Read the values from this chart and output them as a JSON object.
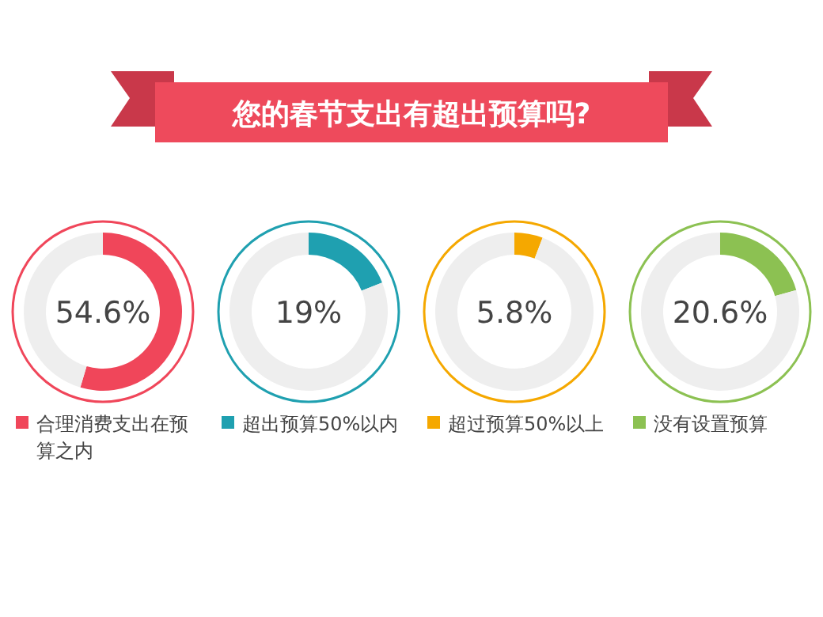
{
  "chart_data": [
    {
      "type": "donut",
      "title": "您的春节支出有超出预算吗?",
      "categories": [
        "合理消费支出在预算之内",
        null
      ],
      "values": [
        54.6,
        45.4
      ],
      "colors": [
        "#f0465a",
        "#eeeeee"
      ],
      "annotations": [
        "54.6%"
      ],
      "legend": "bottom"
    },
    {
      "type": "donut",
      "categories": [
        "超出预算50%以内",
        null
      ],
      "values": [
        19,
        81
      ],
      "colors": [
        "#1fa0b0",
        "#eeeeee"
      ],
      "annotations": [
        "19%"
      ],
      "legend": "bottom"
    },
    {
      "type": "donut",
      "categories": [
        "超过预算50%以上",
        null
      ],
      "values": [
        5.8,
        94.2
      ],
      "colors": [
        "#f5a800",
        "#eeeeee"
      ],
      "annotations": [
        "5.8%"
      ],
      "legend": "bottom"
    },
    {
      "type": "donut",
      "categories": [
        "没有设置预算",
        null
      ],
      "values": [
        20.6,
        79.4
      ],
      "colors": [
        "#8cc152",
        "#eeeeee"
      ],
      "annotations": [
        "20.6%"
      ],
      "legend": "bottom"
    }
  ]
}
